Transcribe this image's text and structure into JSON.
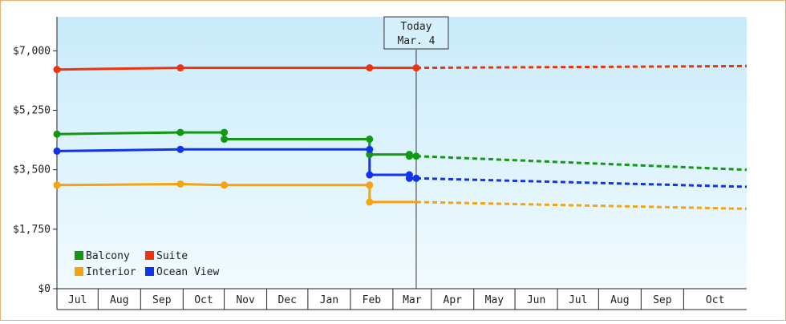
{
  "chart_data": {
    "type": "line",
    "x_unit": "date",
    "xlim": [
      "2014-06-15",
      "2015-10-31"
    ],
    "ylim": [
      0,
      8000
    ],
    "y_ticks": [
      {
        "value": 0,
        "label": "$0"
      },
      {
        "value": 1750,
        "label": "$1,750"
      },
      {
        "value": 3500,
        "label": "$3,500"
      },
      {
        "value": 5250,
        "label": "$5,250"
      },
      {
        "value": 7000,
        "label": "$7,000"
      }
    ],
    "x_months": [
      {
        "label": "Jul",
        "start": "2014-06-15",
        "end": "2014-07-15"
      },
      {
        "label": "Aug",
        "start": "2014-07-15",
        "end": "2014-08-15"
      },
      {
        "label": "Sep",
        "start": "2014-08-15",
        "end": "2014-09-15"
      },
      {
        "label": "Oct",
        "start": "2014-09-15",
        "end": "2014-10-15"
      },
      {
        "label": "Nov",
        "start": "2014-10-15",
        "end": "2014-11-15"
      },
      {
        "label": "Dec",
        "start": "2014-11-15",
        "end": "2014-12-15"
      },
      {
        "label": "Jan",
        "start": "2014-12-15",
        "end": "2015-01-15"
      },
      {
        "label": "Feb",
        "start": "2015-01-15",
        "end": "2015-02-15"
      },
      {
        "label": "Mar",
        "start": "2015-02-15",
        "end": "2015-03-15"
      },
      {
        "label": "Apr",
        "start": "2015-03-15",
        "end": "2015-04-15"
      },
      {
        "label": "May",
        "start": "2015-04-15",
        "end": "2015-05-15"
      },
      {
        "label": "Jun",
        "start": "2015-05-15",
        "end": "2015-06-15"
      },
      {
        "label": "Jul",
        "start": "2015-06-15",
        "end": "2015-07-15"
      },
      {
        "label": "Aug",
        "start": "2015-07-15",
        "end": "2015-08-15"
      },
      {
        "label": "Sep",
        "start": "2015-08-15",
        "end": "2015-09-15"
      },
      {
        "label": "Oct",
        "start": "2015-09-15",
        "end": "2015-10-31"
      }
    ],
    "today": {
      "date": "2015-03-04",
      "label_line1": "Today",
      "label_line2": "Mar. 4"
    },
    "grid": false,
    "legend_position": "bottom-left",
    "series": [
      {
        "name": "Balcony",
        "color": "#119911",
        "history": [
          [
            "2014-06-15",
            4550
          ],
          [
            "2014-09-13",
            4600
          ],
          [
            "2014-10-15",
            4600
          ],
          [
            "2014-10-15",
            4400
          ],
          [
            "2015-01-29",
            4400
          ],
          [
            "2015-01-29",
            3950
          ],
          [
            "2015-02-27",
            3950
          ],
          [
            "2015-02-27",
            3900
          ],
          [
            "2015-03-04",
            3900
          ]
        ],
        "forecast": [
          [
            "2015-03-04",
            3900
          ],
          [
            "2015-10-31",
            3500
          ]
        ]
      },
      {
        "name": "Suite",
        "color": "#ee3311",
        "history": [
          [
            "2014-06-15",
            6450
          ],
          [
            "2014-09-13",
            6500
          ],
          [
            "2015-01-29",
            6500
          ],
          [
            "2015-03-04",
            6500
          ]
        ],
        "forecast": [
          [
            "2015-03-04",
            6500
          ],
          [
            "2015-10-31",
            6550
          ]
        ]
      },
      {
        "name": "Interior",
        "color": "#f5a30f",
        "history": [
          [
            "2014-06-15",
            3050
          ],
          [
            "2014-09-13",
            3080
          ],
          [
            "2014-10-15",
            3050
          ],
          [
            "2015-01-29",
            3050
          ],
          [
            "2015-01-29",
            2550
          ],
          [
            "2015-03-04",
            2550
          ]
        ],
        "forecast": [
          [
            "2015-03-04",
            2550
          ],
          [
            "2015-10-31",
            2350
          ]
        ]
      },
      {
        "name": "Ocean View",
        "color": "#1133ee",
        "history": [
          [
            "2014-06-15",
            4050
          ],
          [
            "2014-09-13",
            4100
          ],
          [
            "2015-01-29",
            4100
          ],
          [
            "2015-01-29",
            3350
          ],
          [
            "2015-02-27",
            3350
          ],
          [
            "2015-02-27",
            3250
          ],
          [
            "2015-03-04",
            3250
          ]
        ],
        "forecast": [
          [
            "2015-03-04",
            3250
          ],
          [
            "2015-10-31",
            3000
          ]
        ]
      }
    ],
    "markers": [
      {
        "series": "Balcony",
        "points": [
          [
            "2014-06-15",
            4550
          ],
          [
            "2014-09-13",
            4600
          ],
          [
            "2014-10-15",
            4600
          ],
          [
            "2014-10-15",
            4400
          ],
          [
            "2015-01-29",
            4400
          ],
          [
            "2015-01-29",
            3950
          ],
          [
            "2015-02-27",
            3950
          ],
          [
            "2015-02-27",
            3900
          ],
          [
            "2015-03-04",
            3900
          ]
        ]
      },
      {
        "series": "Suite",
        "points": [
          [
            "2014-06-15",
            6450
          ],
          [
            "2014-09-13",
            6500
          ],
          [
            "2015-01-29",
            6500
          ],
          [
            "2015-03-04",
            6500
          ]
        ]
      },
      {
        "series": "Interior",
        "points": [
          [
            "2014-06-15",
            3050
          ],
          [
            "2014-09-13",
            3080
          ],
          [
            "2014-10-15",
            3050
          ],
          [
            "2015-01-29",
            3050
          ],
          [
            "2015-01-29",
            2550
          ]
        ]
      },
      {
        "series": "Ocean View",
        "points": [
          [
            "2014-06-15",
            4050
          ],
          [
            "2014-09-13",
            4100
          ],
          [
            "2015-01-29",
            4100
          ],
          [
            "2015-01-29",
            3350
          ],
          [
            "2015-02-27",
            3350
          ],
          [
            "2015-02-27",
            3250
          ],
          [
            "2015-03-04",
            3250
          ]
        ]
      }
    ]
  }
}
